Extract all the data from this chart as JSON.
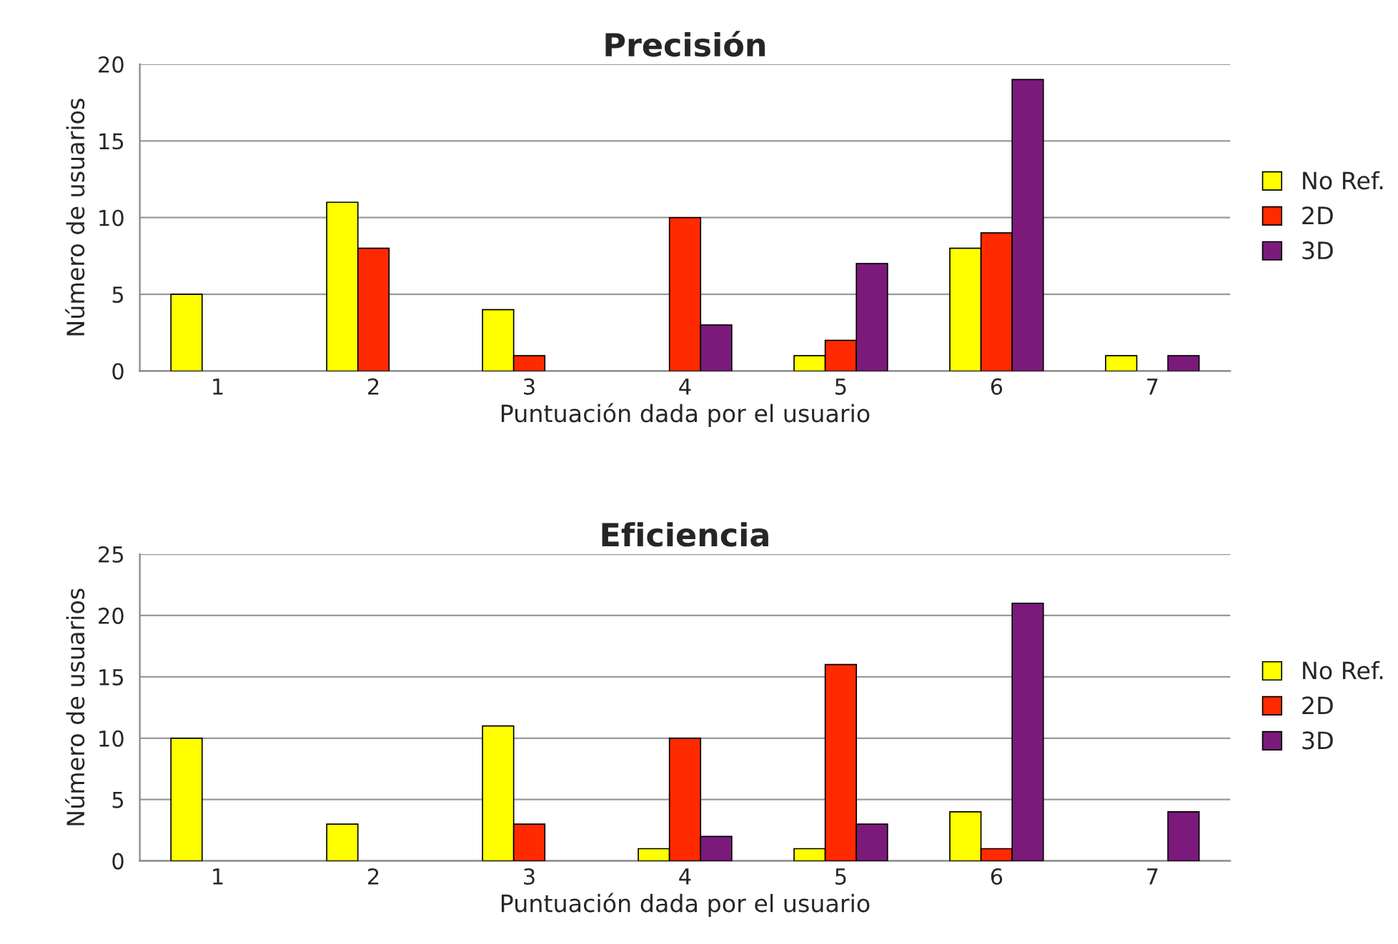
{
  "chart_data": [
    {
      "type": "bar",
      "title": "Precisión",
      "xlabel": "Puntuación dada por el usuario",
      "ylabel": "Número de usuarios",
      "categories": [
        "1",
        "2",
        "3",
        "4",
        "5",
        "6",
        "7"
      ],
      "series": [
        {
          "name": "No Ref.",
          "color": "#ffff00",
          "values": [
            5,
            11,
            4,
            0,
            1,
            8,
            1
          ]
        },
        {
          "name": "2D",
          "color": "#ff2a00",
          "values": [
            0,
            8,
            1,
            10,
            2,
            9,
            0
          ]
        },
        {
          "name": "3D",
          "color": "#7b1a7b",
          "values": [
            0,
            0,
            0,
            3,
            7,
            19,
            1
          ]
        }
      ],
      "ylim": [
        0,
        20
      ],
      "yticks": [
        0,
        5,
        10,
        15,
        20
      ],
      "grid": "y",
      "legend": "right"
    },
    {
      "type": "bar",
      "title": "Eficiencia",
      "xlabel": "Puntuación dada por el usuario",
      "ylabel": "Número de usuarios",
      "categories": [
        "1",
        "2",
        "3",
        "4",
        "5",
        "6",
        "7"
      ],
      "series": [
        {
          "name": "No Ref.",
          "color": "#ffff00",
          "values": [
            10,
            3,
            11,
            1,
            1,
            4,
            0
          ]
        },
        {
          "name": "2D",
          "color": "#ff2a00",
          "values": [
            0,
            0,
            3,
            10,
            16,
            1,
            0
          ]
        },
        {
          "name": "3D",
          "color": "#7b1a7b",
          "values": [
            0,
            0,
            0,
            2,
            3,
            21,
            4
          ]
        }
      ],
      "ylim": [
        0,
        25
      ],
      "yticks": [
        0,
        5,
        10,
        15,
        20,
        25
      ],
      "grid": "y",
      "legend": "right"
    }
  ]
}
